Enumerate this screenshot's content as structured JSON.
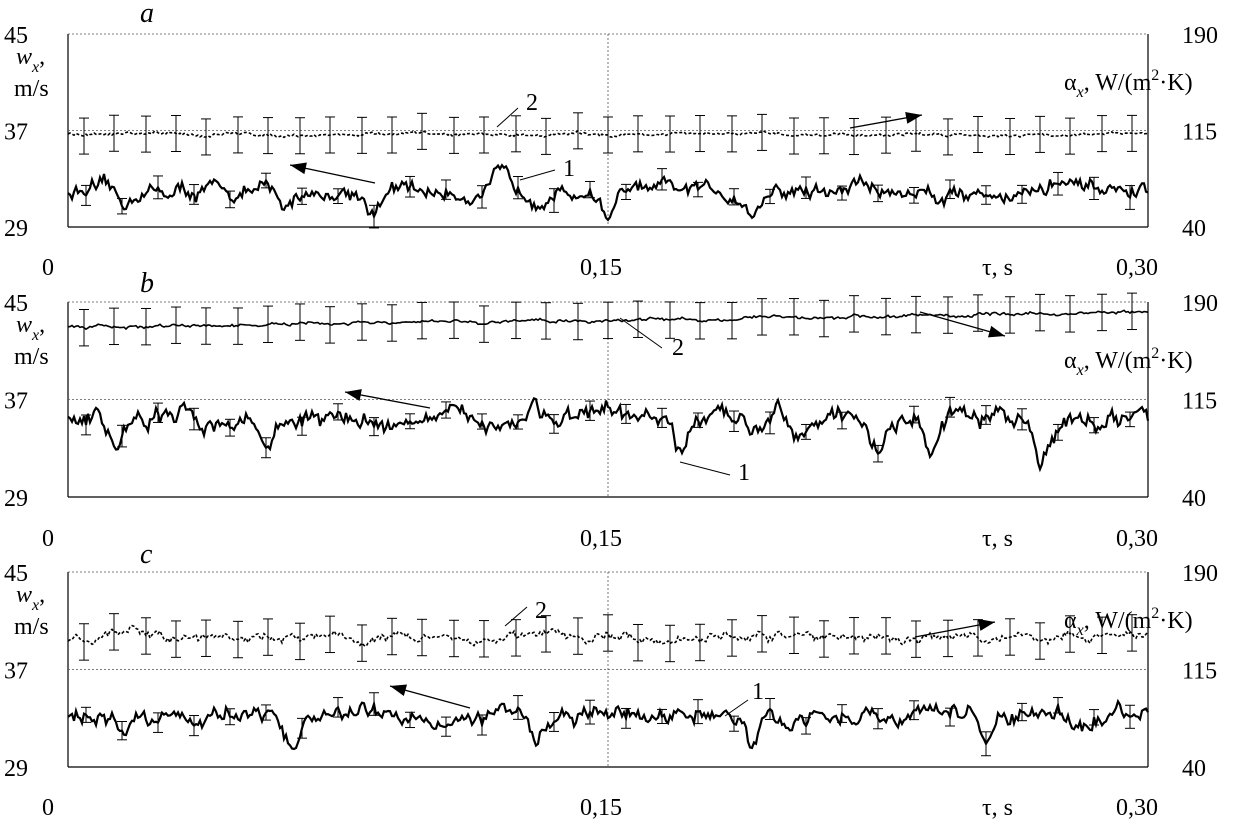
{
  "chart_data": [
    {
      "type": "line",
      "panel_label": "a",
      "x_ticks": [
        "0",
        "0,15",
        "0,30"
      ],
      "xlabel": "τ, s",
      "xlim": [
        0,
        0.3
      ],
      "y_left": {
        "label": "w",
        "label_sub": "x",
        "label_unit": "m/s",
        "ticks": [
          "45",
          "37",
          "29"
        ],
        "lim": [
          29,
          45
        ]
      },
      "y_right": {
        "label": "α",
        "label_sub": "x",
        "label_unit": "W/(m",
        "label_sup": "2",
        "label_tail": "·K)",
        "ticks": [
          "190",
          "115",
          "40"
        ],
        "lim": [
          40,
          190
        ]
      },
      "grid": {
        "x_mid_dashed": true,
        "y_dashed": [
          45,
          37
        ]
      },
      "series": [
        {
          "label": "1",
          "axis": "left",
          "style": "solid",
          "mean": 31.9,
          "fluct": 0.7,
          "spikes": [
            [
              0.015,
              -1.2
            ],
            [
              0.06,
              -1.6
            ],
            [
              0.085,
              -1.5
            ],
            [
              0.12,
              1.2
            ],
            [
              0.15,
              -1.8
            ],
            [
              0.19,
              -1.7
            ],
            [
              0.22,
              1.2
            ],
            [
              0.275,
              1.0
            ]
          ]
        },
        {
          "label": "2",
          "axis": "right",
          "style": "dashed",
          "mean": 112,
          "fluct": 1.5,
          "drift": 0,
          "error_half": 14
        }
      ]
    },
    {
      "type": "line",
      "panel_label": "b",
      "x_ticks": [
        "0",
        "0,15",
        "0,30"
      ],
      "xlabel": "τ, s",
      "xlim": [
        0,
        0.3
      ],
      "y_left": {
        "label": "w",
        "label_sub": "x",
        "label_unit": "m/s",
        "ticks": [
          "45",
          "37",
          "29"
        ],
        "lim": [
          29,
          45
        ]
      },
      "y_right": {
        "label": "α",
        "label_sub": "x",
        "label_unit": "W/(m",
        "label_sup": "2",
        "label_tail": "·K)",
        "ticks": [
          "190",
          "115",
          "40"
        ],
        "lim": [
          40,
          190
        ]
      },
      "grid": {
        "x_mid_dashed": true,
        "y_dashed": [
          45,
          37
        ]
      },
      "series": [
        {
          "label": "1",
          "axis": "left",
          "style": "solid",
          "mean": 35.3,
          "fluct": 0.8,
          "spikes": [
            [
              0.013,
              -1.8
            ],
            [
              0.055,
              -1.9
            ],
            [
              0.13,
              1.6
            ],
            [
              0.17,
              -3.2
            ],
            [
              0.197,
              1.6
            ],
            [
              0.225,
              -2.2
            ],
            [
              0.24,
              -2.5
            ],
            [
              0.27,
              -3.0
            ]
          ]
        },
        {
          "label": "2",
          "axis": "right",
          "style": "solid",
          "mean": 176,
          "fluct": 1.5,
          "drift": 12,
          "error_half": 14
        }
      ]
    },
    {
      "type": "line",
      "panel_label": "c",
      "x_ticks": [
        "0",
        "0,15",
        "0,30"
      ],
      "xlabel": "τ, s",
      "xlim": [
        0,
        0.3
      ],
      "y_left": {
        "label": "w",
        "label_sub": "x",
        "label_unit": "m/s",
        "ticks": [
          "45",
          "37",
          "29"
        ],
        "lim": [
          29,
          45
        ]
      },
      "y_right": {
        "label": "α",
        "label_sub": "x",
        "label_unit": "W/(m",
        "label_sup": "2",
        "label_tail": "·K)",
        "ticks": [
          "190",
          "115",
          "40"
        ],
        "lim": [
          40,
          190
        ]
      },
      "grid": {
        "x_mid_dashed": true,
        "y_dashed": [
          45,
          37
        ]
      },
      "series": [
        {
          "label": "1",
          "axis": "left",
          "style": "solid",
          "mean": 33.2,
          "fluct": 0.75,
          "spikes": [
            [
              0.015,
              -1.5
            ],
            [
              0.062,
              -2.8
            ],
            [
              0.13,
              -1.8
            ],
            [
              0.19,
              -2.9
            ],
            [
              0.255,
              -1.6
            ]
          ]
        },
        {
          "label": "2",
          "axis": "right",
          "style": "dashed",
          "mean": 140,
          "fluct": 4,
          "drift": 0,
          "error_half": 14
        }
      ]
    }
  ]
}
